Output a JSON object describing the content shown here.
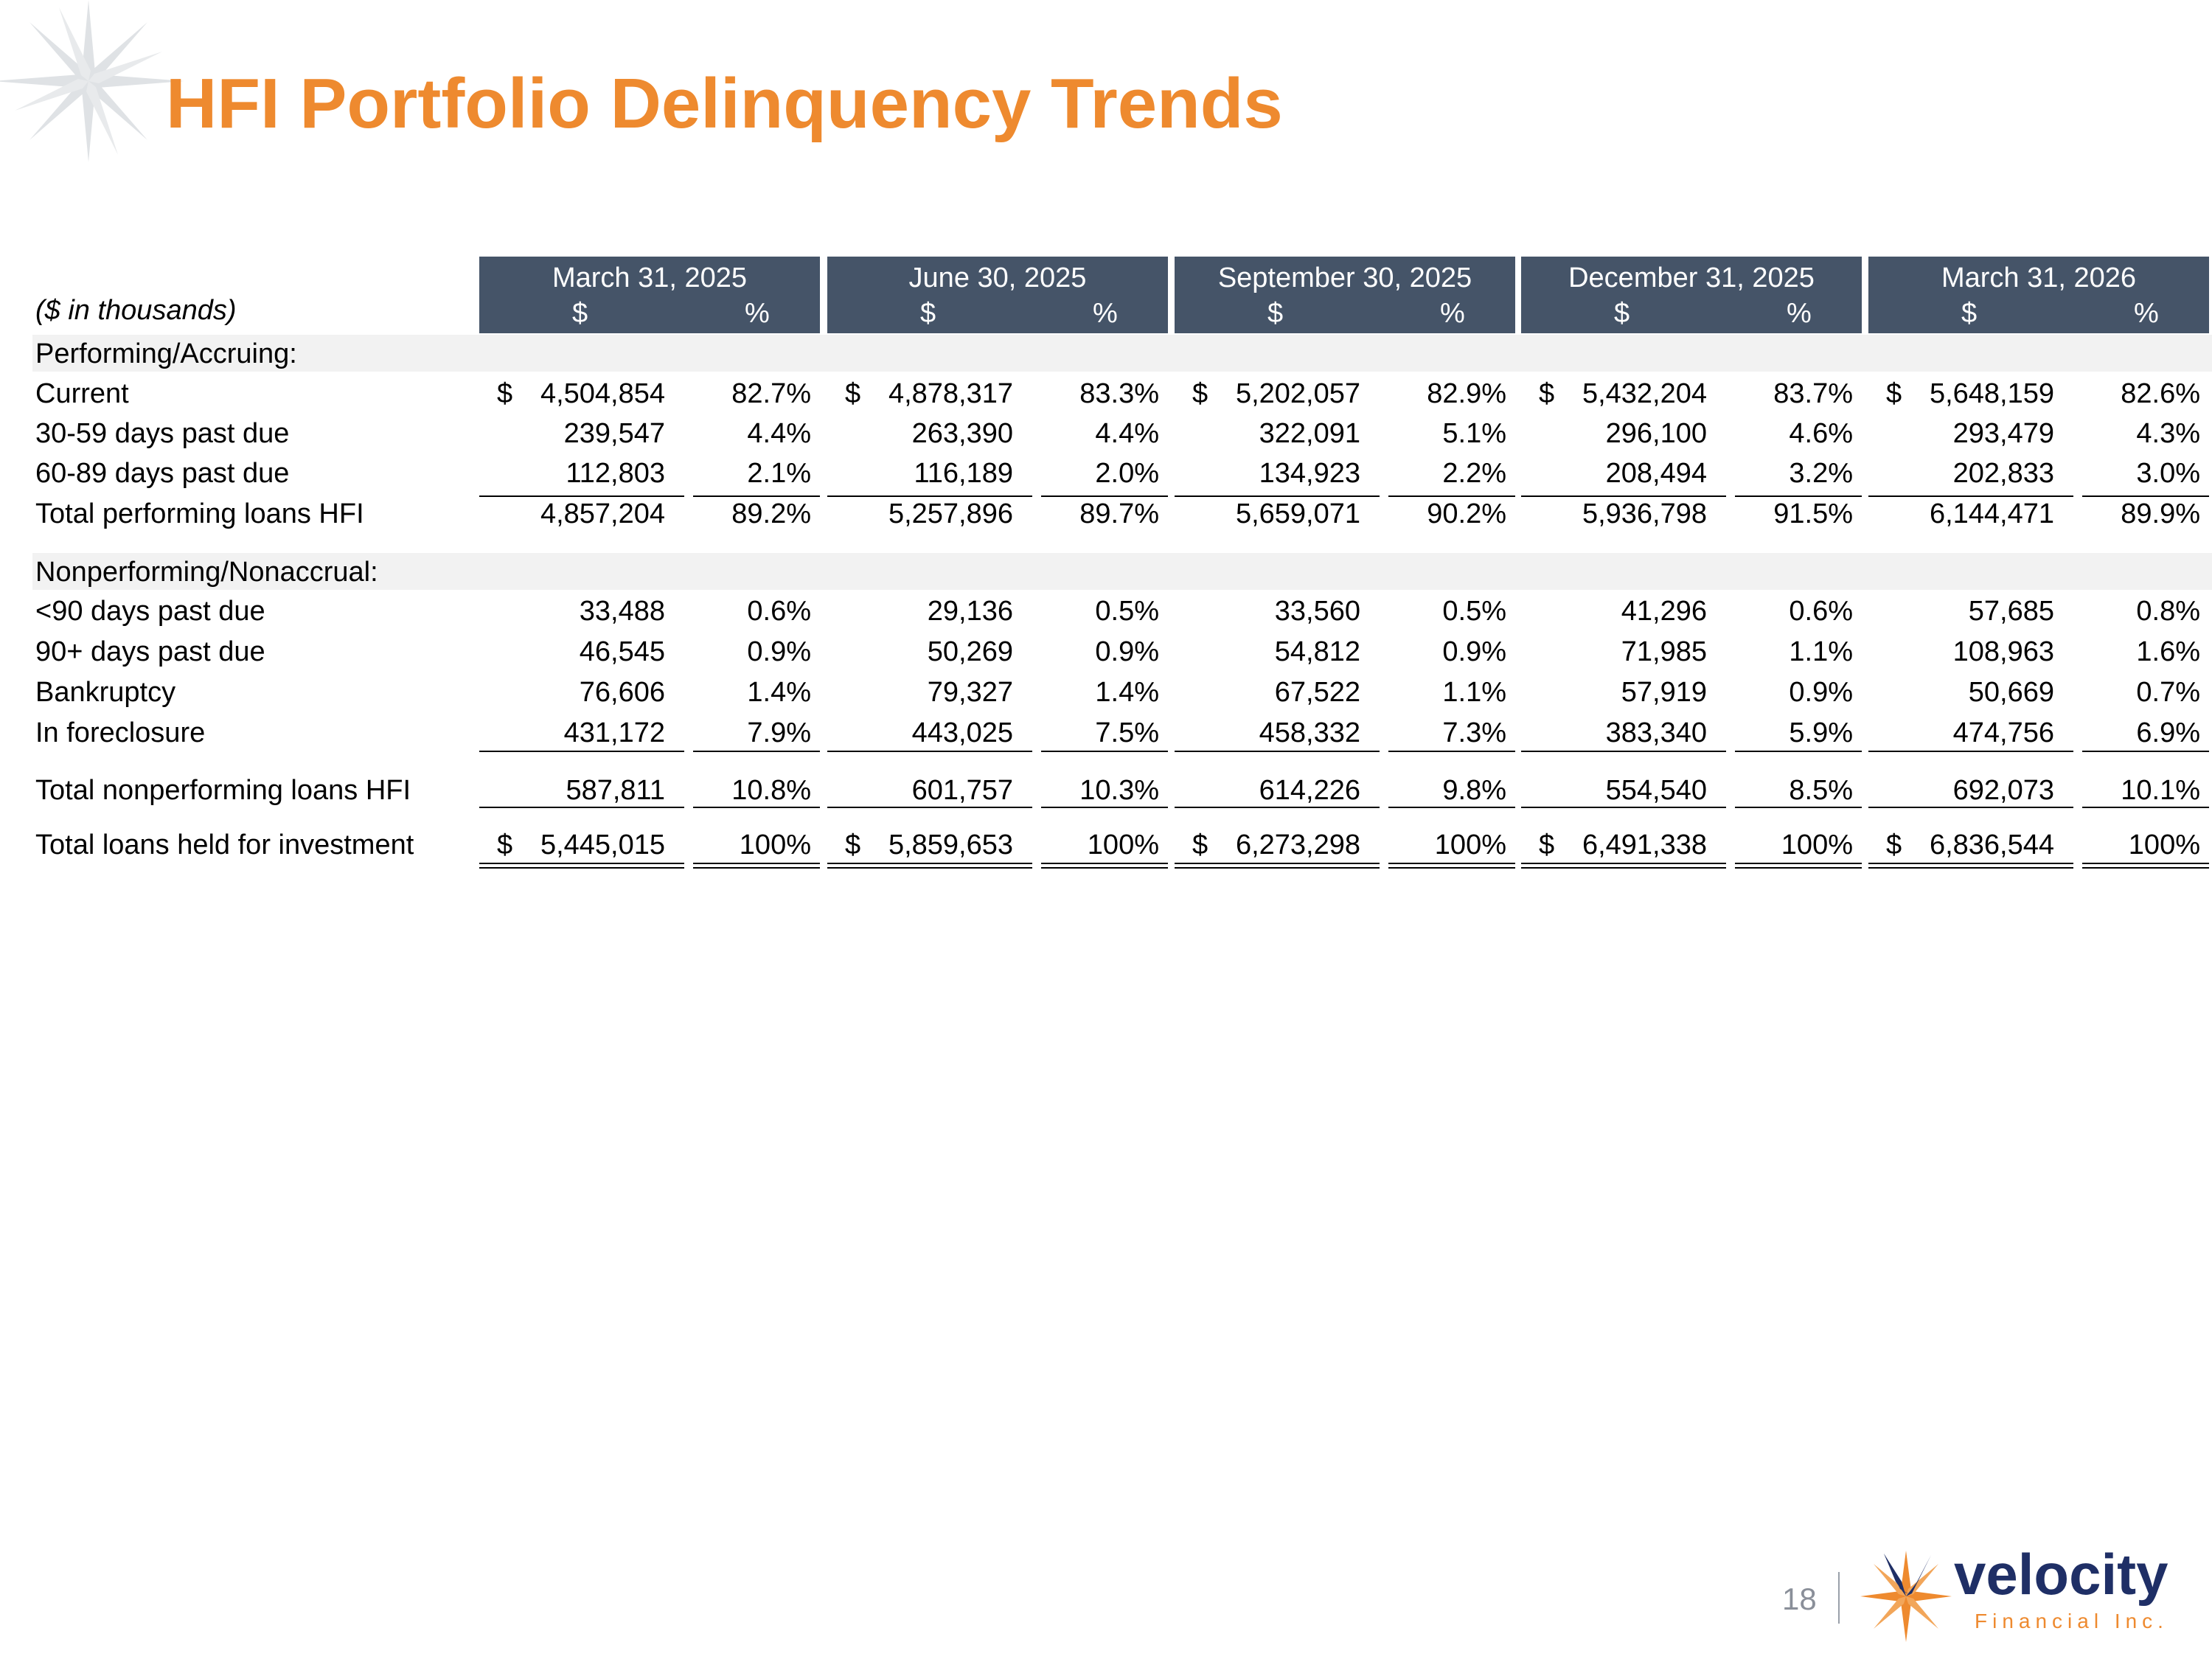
{
  "title": "HFI Portfolio Delinquency Trends",
  "units_label": "($ in thousands)",
  "periods": [
    "March 31, 2025",
    "June 30, 2025",
    "September 30, 2025",
    "December 31, 2025",
    "March 31, 2026"
  ],
  "sub_dollar": "$",
  "sub_pct": "%",
  "sections": {
    "performing": "Performing/Accruing:",
    "nonperforming": "Nonperforming/Nonaccrual:"
  },
  "rows": [
    {
      "label": "Current",
      "dollar_sign": "$",
      "values": [
        {
          "amt": "4,504,854",
          "pct": "82.7%"
        },
        {
          "amt": "4,878,317",
          "pct": "83.3%"
        },
        {
          "amt": "5,202,057",
          "pct": "82.9%"
        },
        {
          "amt": "5,432,204",
          "pct": "83.7%"
        },
        {
          "amt": "5,648,159",
          "pct": "82.6%"
        }
      ]
    },
    {
      "label": "30-59 days past due",
      "dollar_sign": "",
      "values": [
        {
          "amt": "239,547",
          "pct": "4.4%"
        },
        {
          "amt": "263,390",
          "pct": "4.4%"
        },
        {
          "amt": "322,091",
          "pct": "5.1%"
        },
        {
          "amt": "296,100",
          "pct": "4.6%"
        },
        {
          "amt": "293,479",
          "pct": "4.3%"
        }
      ]
    },
    {
      "label": "60-89 days past due",
      "dollar_sign": "",
      "values": [
        {
          "amt": "112,803",
          "pct": "2.1%"
        },
        {
          "amt": "116,189",
          "pct": "2.0%"
        },
        {
          "amt": "134,923",
          "pct": "2.2%"
        },
        {
          "amt": "208,494",
          "pct": "3.2%"
        },
        {
          "amt": "202,833",
          "pct": "3.0%"
        }
      ]
    },
    {
      "label": "Total performing loans HFI",
      "dollar_sign": "",
      "values": [
        {
          "amt": "4,857,204",
          "pct": "89.2%"
        },
        {
          "amt": "5,257,896",
          "pct": "89.7%"
        },
        {
          "amt": "5,659,071",
          "pct": "90.2%"
        },
        {
          "amt": "5,936,798",
          "pct": "91.5%"
        },
        {
          "amt": "6,144,471",
          "pct": "89.9%"
        }
      ]
    },
    {
      "label": "<90 days past due",
      "dollar_sign": "",
      "values": [
        {
          "amt": "33,488",
          "pct": "0.6%"
        },
        {
          "amt": "29,136",
          "pct": "0.5%"
        },
        {
          "amt": "33,560",
          "pct": "0.5%"
        },
        {
          "amt": "41,296",
          "pct": "0.6%"
        },
        {
          "amt": "57,685",
          "pct": "0.8%"
        }
      ]
    },
    {
      "label": "90+ days past due",
      "dollar_sign": "",
      "values": [
        {
          "amt": "46,545",
          "pct": "0.9%"
        },
        {
          "amt": "50,269",
          "pct": "0.9%"
        },
        {
          "amt": "54,812",
          "pct": "0.9%"
        },
        {
          "amt": "71,985",
          "pct": "1.1%"
        },
        {
          "amt": "108,963",
          "pct": "1.6%"
        }
      ]
    },
    {
      "label": "Bankruptcy",
      "dollar_sign": "",
      "values": [
        {
          "amt": "76,606",
          "pct": "1.4%"
        },
        {
          "amt": "79,327",
          "pct": "1.4%"
        },
        {
          "amt": "67,522",
          "pct": "1.1%"
        },
        {
          "amt": "57,919",
          "pct": "0.9%"
        },
        {
          "amt": "50,669",
          "pct": "0.7%"
        }
      ]
    },
    {
      "label": "In foreclosure",
      "dollar_sign": "",
      "values": [
        {
          "amt": "431,172",
          "pct": "7.9%"
        },
        {
          "amt": "443,025",
          "pct": "7.5%"
        },
        {
          "amt": "458,332",
          "pct": "7.3%"
        },
        {
          "amt": "383,340",
          "pct": "5.9%"
        },
        {
          "amt": "474,756",
          "pct": "6.9%"
        }
      ]
    },
    {
      "label": "Total nonperforming loans HFI",
      "dollar_sign": "",
      "values": [
        {
          "amt": "587,811",
          "pct": "10.8%"
        },
        {
          "amt": "601,757",
          "pct": "10.3%"
        },
        {
          "amt": "614,226",
          "pct": "9.8%"
        },
        {
          "amt": "554,540",
          "pct": "8.5%"
        },
        {
          "amt": "692,073",
          "pct": "10.1%"
        }
      ]
    },
    {
      "label": "Total loans held for investment",
      "dollar_sign": "$",
      "values": [
        {
          "amt": "5,445,015",
          "pct": "100%"
        },
        {
          "amt": "5,859,653",
          "pct": "100%"
        },
        {
          "amt": "6,273,298",
          "pct": "100%"
        },
        {
          "amt": "6,491,338",
          "pct": "100%"
        },
        {
          "amt": "6,836,544",
          "pct": "100%"
        }
      ]
    }
  ],
  "page_number": "18",
  "logo": {
    "wordmark": "velocity",
    "tagline": "Financial Inc."
  },
  "colors": {
    "title": "#ee8a2f",
    "header_band": "#455468",
    "section_band": "#f2f2f2",
    "logo_text": "#1f2f66",
    "logo_accent": "#ee8a2f"
  }
}
